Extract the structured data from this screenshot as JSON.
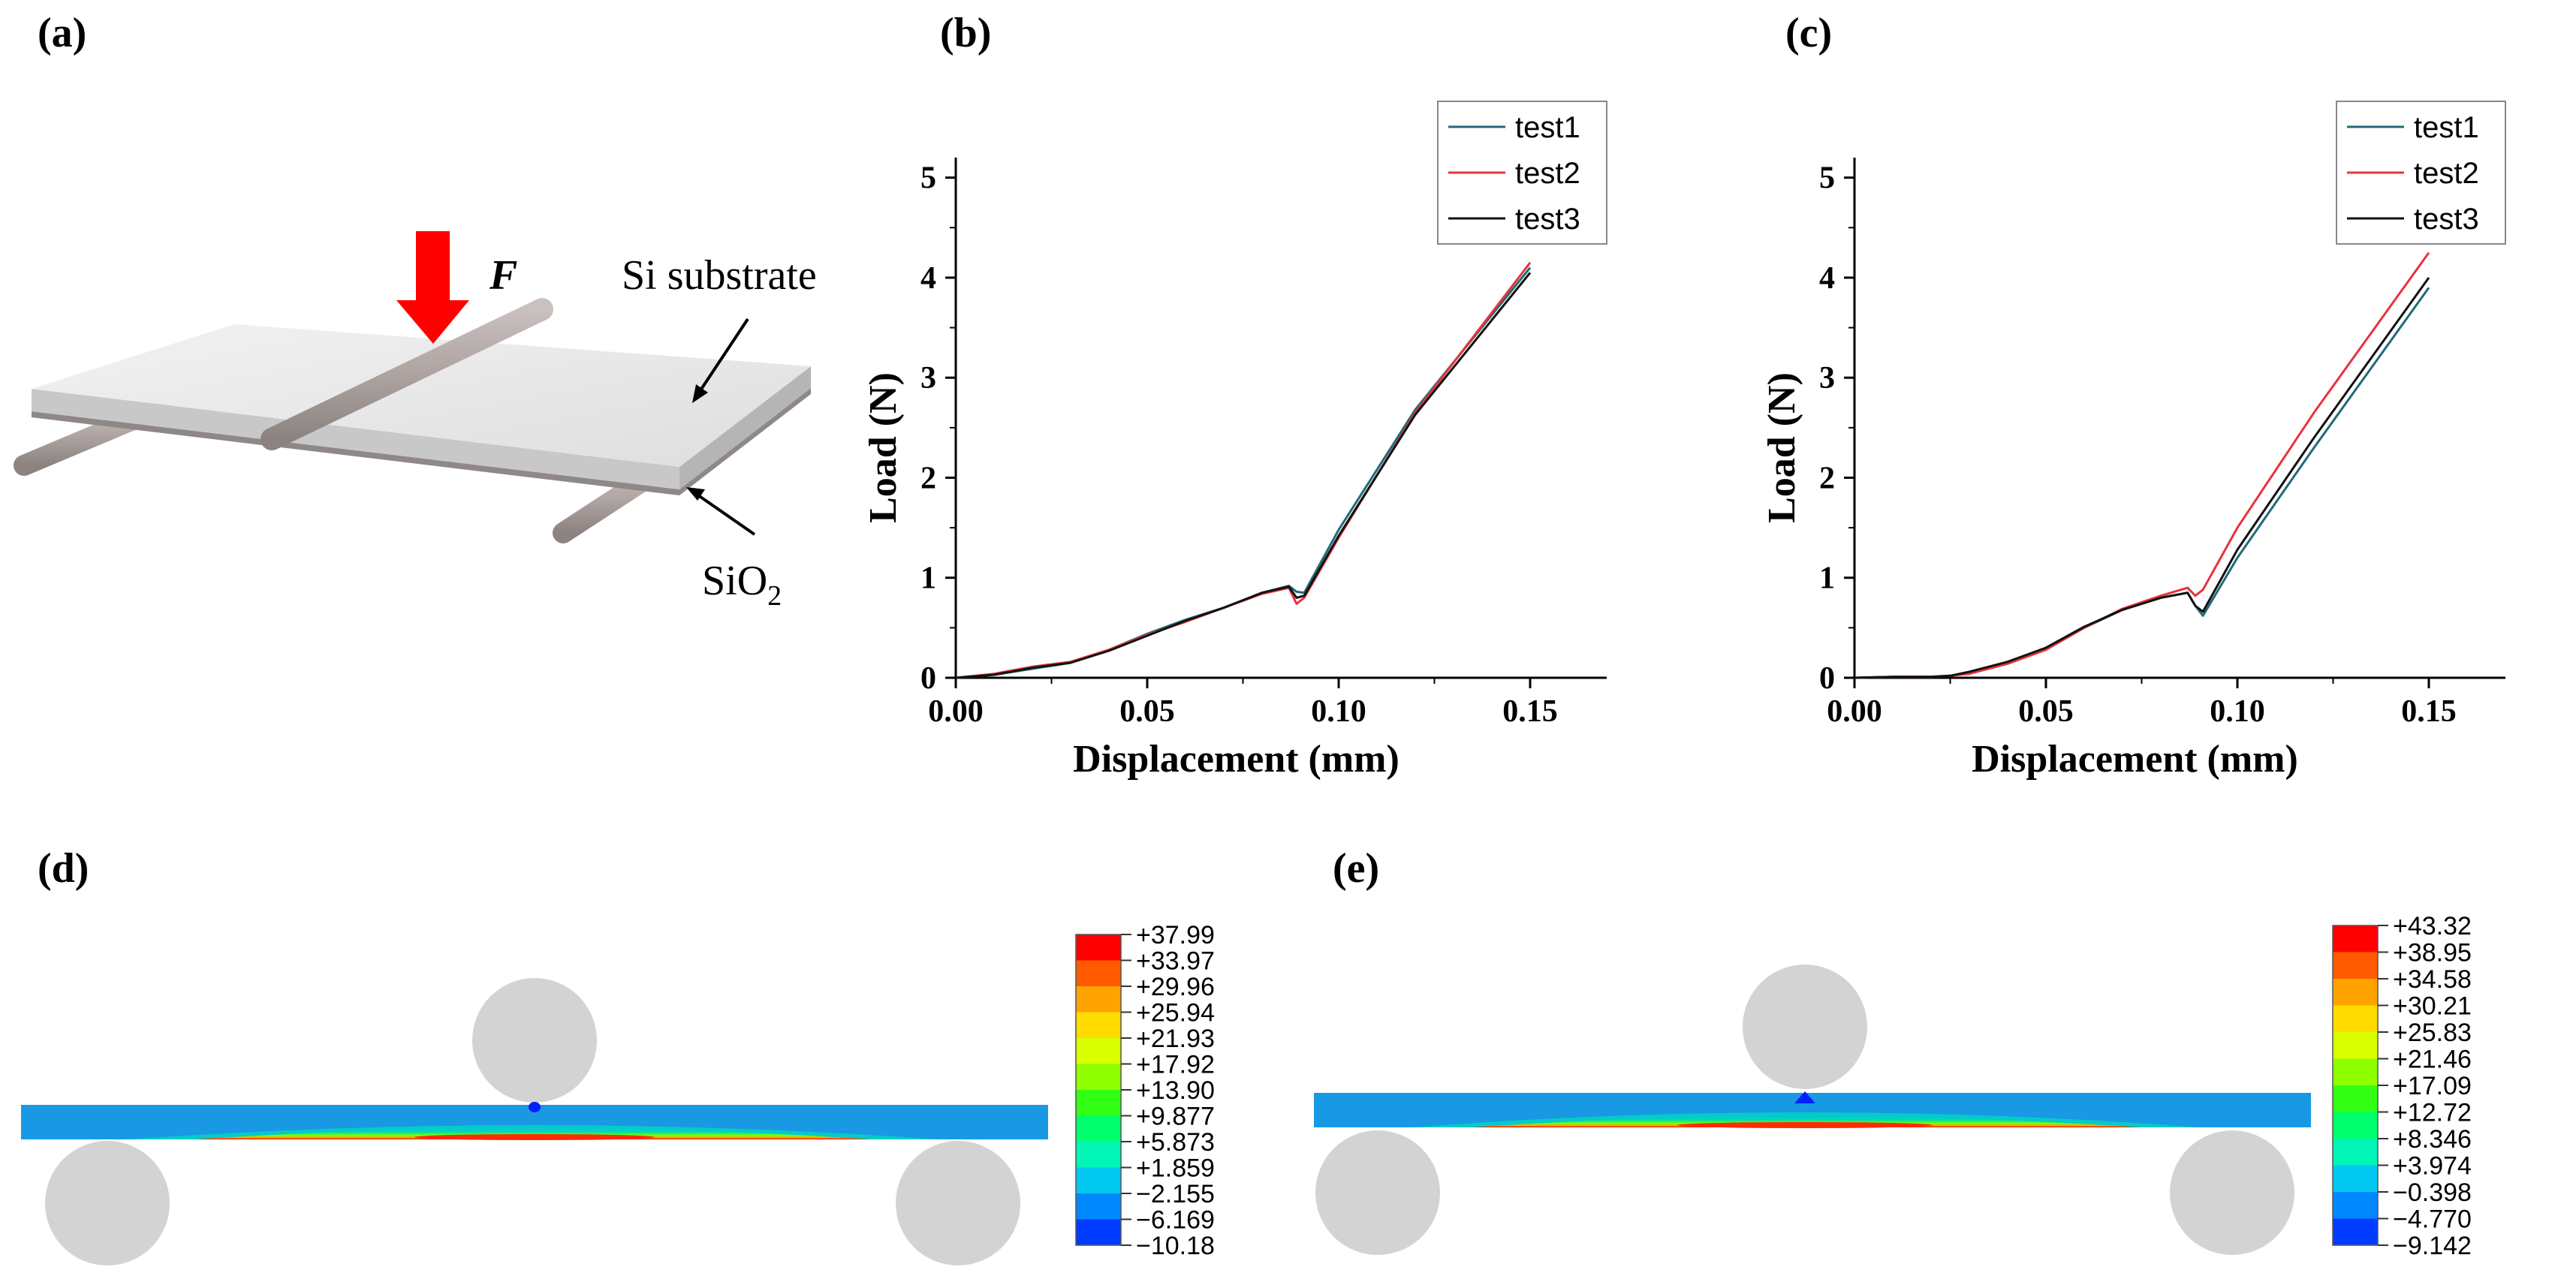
{
  "panels": {
    "a": {
      "label": "(a)",
      "force_label": "F",
      "substrate_label": "Si substrate",
      "oxide_label": "SiO",
      "oxide_subscript": "2"
    },
    "b": {
      "label": "(b)"
    },
    "c": {
      "label": "(c)"
    },
    "d": {
      "label": "(d)"
    },
    "e": {
      "label": "(e)"
    }
  },
  "colors": {
    "test1": "#1f6b77",
    "test2": "#e8333a",
    "test3": "#111111",
    "force_arrow": "#ff0000",
    "roller": "#d3d3d3",
    "beam_base": "#1a8fe0"
  },
  "chart_data": [
    {
      "id": "b",
      "type": "line",
      "xlabel": "Displacement (mm)",
      "ylabel": "Load (N)",
      "xlim": [
        0,
        0.17
      ],
      "ylim": [
        0,
        5.2
      ],
      "xticks": [
        "0.00",
        "0.05",
        "0.10",
        "0.15"
      ],
      "xtick_values": [
        0,
        0.05,
        0.1,
        0.15
      ],
      "yticks": [
        "0",
        "1",
        "2",
        "3",
        "4",
        "5"
      ],
      "ytick_values": [
        0,
        1,
        2,
        3,
        4,
        5
      ],
      "series": [
        {
          "name": "test1",
          "x": [
            0,
            0.01,
            0.02,
            0.03,
            0.04,
            0.05,
            0.06,
            0.07,
            0.08,
            0.087,
            0.089,
            0.091,
            0.1,
            0.12,
            0.15
          ],
          "y": [
            0,
            0.03,
            0.09,
            0.15,
            0.28,
            0.44,
            0.58,
            0.7,
            0.85,
            0.92,
            0.86,
            0.85,
            1.48,
            2.68,
            4.1
          ]
        },
        {
          "name": "test2",
          "x": [
            0,
            0.01,
            0.02,
            0.03,
            0.04,
            0.05,
            0.06,
            0.07,
            0.08,
            0.087,
            0.089,
            0.091,
            0.1,
            0.12,
            0.15
          ],
          "y": [
            0,
            0.04,
            0.11,
            0.16,
            0.28,
            0.43,
            0.56,
            0.7,
            0.84,
            0.9,
            0.74,
            0.8,
            1.4,
            2.65,
            4.15
          ]
        },
        {
          "name": "test3",
          "x": [
            0,
            0.01,
            0.02,
            0.03,
            0.04,
            0.05,
            0.06,
            0.07,
            0.08,
            0.087,
            0.089,
            0.091,
            0.1,
            0.12,
            0.15
          ],
          "y": [
            0,
            0.03,
            0.1,
            0.15,
            0.27,
            0.42,
            0.57,
            0.7,
            0.85,
            0.91,
            0.8,
            0.82,
            1.42,
            2.63,
            4.05
          ]
        }
      ]
    },
    {
      "id": "c",
      "type": "line",
      "xlabel": "Displacement (mm)",
      "ylabel": "Load (N)",
      "xlim": [
        0,
        0.17
      ],
      "ylim": [
        0,
        5.2
      ],
      "xticks": [
        "0.00",
        "0.05",
        "0.10",
        "0.15"
      ],
      "xtick_values": [
        0,
        0.05,
        0.1,
        0.15
      ],
      "yticks": [
        "0",
        "1",
        "2",
        "3",
        "4",
        "5"
      ],
      "ytick_values": [
        0,
        1,
        2,
        3,
        4,
        5
      ],
      "series": [
        {
          "name": "test1",
          "x": [
            0,
            0.01,
            0.02,
            0.025,
            0.03,
            0.04,
            0.05,
            0.06,
            0.07,
            0.08,
            0.087,
            0.089,
            0.091,
            0.1,
            0.12,
            0.15
          ],
          "y": [
            0,
            0.01,
            0.01,
            0.02,
            0.05,
            0.15,
            0.3,
            0.5,
            0.68,
            0.8,
            0.85,
            0.72,
            0.62,
            1.2,
            2.3,
            3.9
          ]
        },
        {
          "name": "test2",
          "x": [
            0,
            0.01,
            0.02,
            0.025,
            0.03,
            0.04,
            0.05,
            0.06,
            0.07,
            0.08,
            0.087,
            0.089,
            0.091,
            0.1,
            0.12,
            0.15
          ],
          "y": [
            0,
            0.01,
            0.01,
            0.02,
            0.04,
            0.14,
            0.28,
            0.5,
            0.69,
            0.82,
            0.9,
            0.82,
            0.88,
            1.5,
            2.65,
            4.25
          ]
        },
        {
          "name": "test3",
          "x": [
            0,
            0.01,
            0.02,
            0.025,
            0.03,
            0.04,
            0.05,
            0.06,
            0.07,
            0.08,
            0.087,
            0.089,
            0.091,
            0.1,
            0.12,
            0.15
          ],
          "y": [
            0,
            0.01,
            0.01,
            0.02,
            0.06,
            0.16,
            0.3,
            0.51,
            0.68,
            0.8,
            0.85,
            0.72,
            0.66,
            1.28,
            2.4,
            4.0
          ]
        }
      ]
    }
  ],
  "fea": {
    "d": {
      "colorbar_values": [
        "+37.99",
        "+33.97",
        "+29.96",
        "+25.94",
        "+21.93",
        "+17.92",
        "+13.90",
        "+9.877",
        "+5.873",
        "+1.859",
        "−2.155",
        "−6.169",
        "−10.18"
      ],
      "colorbar_colors": [
        "#ff0000",
        "#ff5a00",
        "#ffa300",
        "#ffdb00",
        "#d9ff00",
        "#8fff00",
        "#32ff14",
        "#00ff6c",
        "#00f5b6",
        "#00c8f0",
        "#0088ff",
        "#003cff",
        "#0000ff"
      ]
    },
    "e": {
      "colorbar_values": [
        "+43.32",
        "+38.95",
        "+34.58",
        "+30.21",
        "+25.83",
        "+21.46",
        "+17.09",
        "+12.72",
        "+8.346",
        "+3.974",
        "−0.398",
        "−4.770",
        "−9.142"
      ],
      "colorbar_colors": [
        "#ff0000",
        "#ff5a00",
        "#ffa300",
        "#ffdb00",
        "#d9ff00",
        "#8fff00",
        "#32ff14",
        "#00ff6c",
        "#00f5b6",
        "#00c8f0",
        "#0088ff",
        "#003cff",
        "#0000ff"
      ]
    }
  }
}
